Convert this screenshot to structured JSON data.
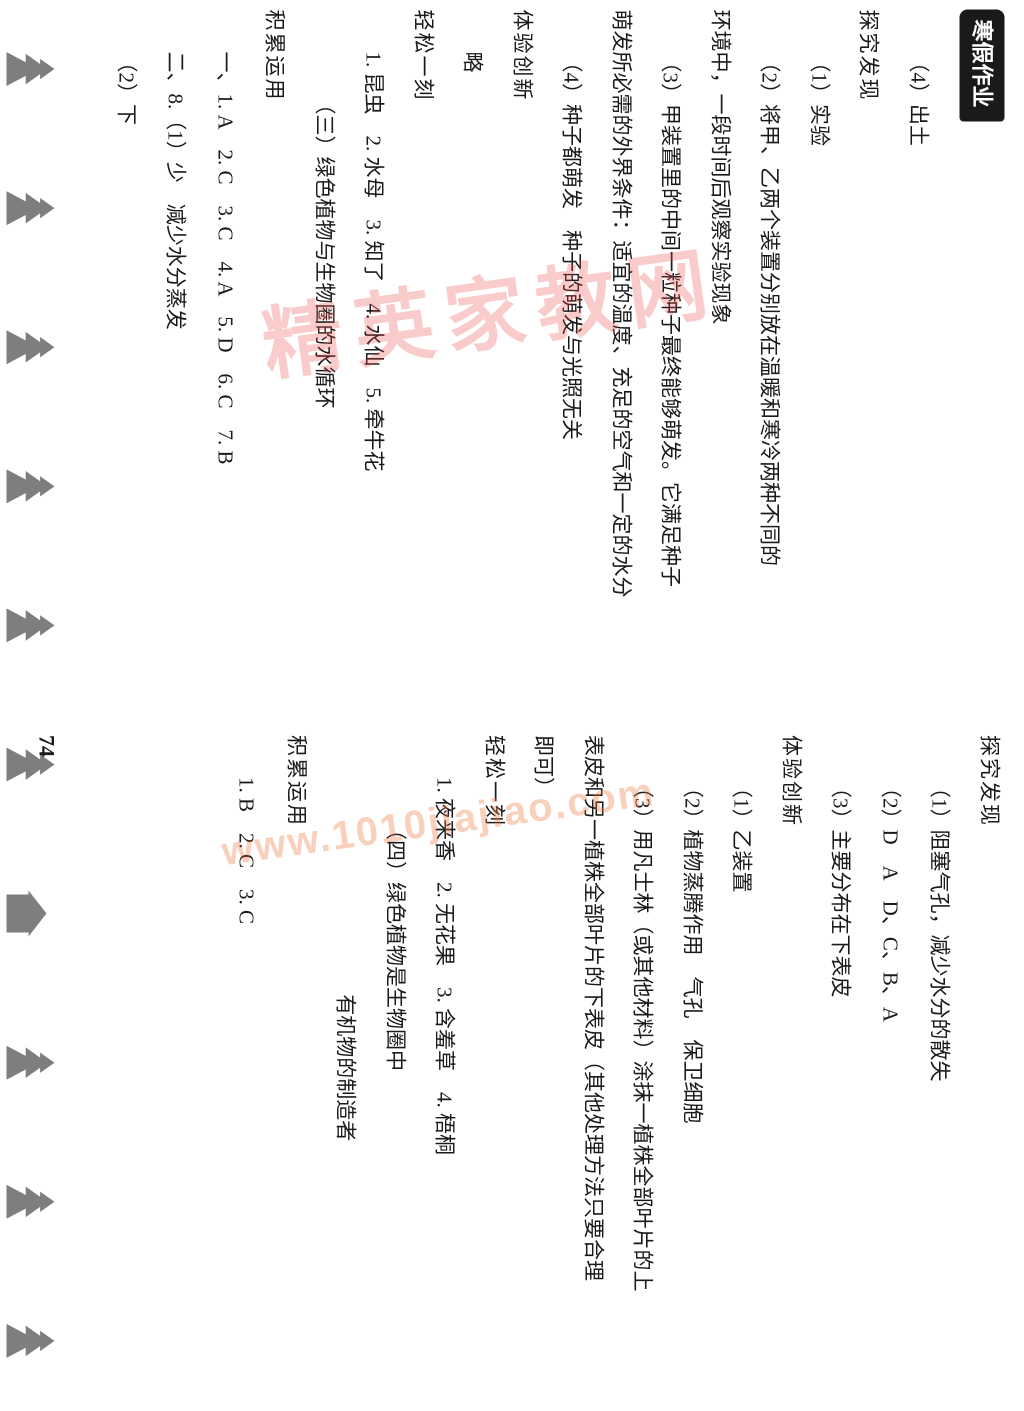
{
  "header_badge": "寒假作业",
  "watermark_main": "精英家教网",
  "watermark_url": "www.1010jiajiao.com",
  "page_number": "74",
  "left": {
    "l1": "（4）出土",
    "sec1": "探究发现",
    "l2": "（1）实验",
    "l3": "（2）将甲、乙两个装置分别放在温暖和寒冷两种不同的",
    "l4": "环境中，一段时间后观察实验现象",
    "l5": "（3）甲装置里的中间一粒种子最终能够萌发。它满足种子",
    "l6": "萌发所必需的外界条件：适宜的温度、充足的空气和一定的水分",
    "l7": "（4）种子都萌发　种子的萌发与光照无关",
    "sec2": "体验创新",
    "l8": "略",
    "sec3": "轻松一刻",
    "l9": "1. 昆虫　2. 水母　3. 知了　4. 水仙　5. 牵牛花",
    "unit_title1": "（三）绿色植物与生物圈的水循环",
    "sec4": "积累运用",
    "l10": "一、1. A　2. C　3. C　4. A　5. D　6. C　7. B",
    "l11": "二、8.（1）少　减少水分蒸发",
    "l12": "（2）下"
  },
  "right": {
    "sec1": "探究发现",
    "l1": "（1）阻塞气孔，减少水分的散失",
    "l2": "（2）D　A　D、C、B、A",
    "l3": "（3）主要分布在下表皮",
    "sec2": "体验创新",
    "l4": "（1）乙装置",
    "l5": "（2）植物蒸腾作用　气孔　保卫细胞",
    "l6": "（3）用凡士林（或其他材料）涂抹一植株全部叶片的上",
    "l7": "表皮和另一植株全部叶片的下表皮（其他处理方法只要合理",
    "l8": "即可）",
    "sec3": "轻松一刻",
    "l9": "1. 夜来香　2. 无花果　3. 含羞草　4. 梧桐",
    "unit_title2": "（四）绿色植物是生物圈中",
    "unit_sub": "有机物的制造者",
    "sec4": "积累运用",
    "l10": "1. B　2. C　3. C"
  }
}
